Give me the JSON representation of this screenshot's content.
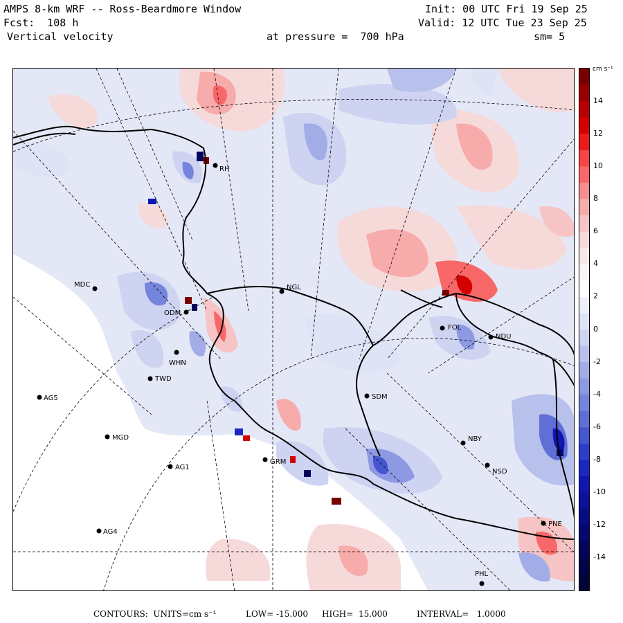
{
  "header": {
    "title": "AMPS 8-km WRF -- Ross-Beardmore Window",
    "init": "Init: 00 UTC Fri 19 Sep 25",
    "fcst": "Fcst:  108 h",
    "valid": "Valid: 12 UTC Tue 23 Sep 25",
    "field": "Vertical velocity",
    "pressure": "at pressure =  700 hPa",
    "smooth": "sm= 5"
  },
  "colorbar": {
    "unit": "cm s⁻¹",
    "ticks": [
      "14",
      "12",
      "10",
      "8",
      "6",
      "4",
      "2",
      "0",
      "-2",
      "-4",
      "-6",
      "-8",
      "-10",
      "-12",
      "-14"
    ],
    "colors": [
      "#7a0000",
      "#9a0000",
      "#b80000",
      "#d40000",
      "#ee1a1a",
      "#f84444",
      "#f86868",
      "#f78d8d",
      "#f7abab",
      "#f6c4c4",
      "#f6dada",
      "#f8eaea",
      "#fbf4f4",
      "#ffffff",
      "#eef0fa",
      "#dfe3f6",
      "#cdd3f1",
      "#b8c0ec",
      "#a2ade7",
      "#8d99e2",
      "#7584dc",
      "#5f6fd6",
      "#4656cf",
      "#2e3dc8",
      "#1b28c0",
      "#1016b0",
      "#0c109a",
      "#080c84",
      "#050870",
      "#03055c",
      "#020448",
      "#01033a"
    ]
  },
  "stations": [
    {
      "code": "MDC"
    },
    {
      "code": "NGL"
    },
    {
      "code": "FOL"
    },
    {
      "code": "NDU"
    },
    {
      "code": "TWD"
    },
    {
      "code": "AG5"
    },
    {
      "code": "SDM"
    },
    {
      "code": "MGD"
    },
    {
      "code": "NBY"
    },
    {
      "code": "AG1"
    },
    {
      "code": "GRM"
    },
    {
      "code": "NSD"
    },
    {
      "code": "AG4"
    },
    {
      "code": "PNE"
    },
    {
      "code": "PHL"
    },
    {
      "code": "WHN"
    },
    {
      "code": "ODM"
    },
    {
      "code": "RH"
    }
  ],
  "footer": {
    "contours": "CONTOURS:  UNITS=cm s⁻¹",
    "low": "LOW= -15.000",
    "high": "HIGH=  15.000",
    "interval": "INTERVAL=   1.0000"
  }
}
